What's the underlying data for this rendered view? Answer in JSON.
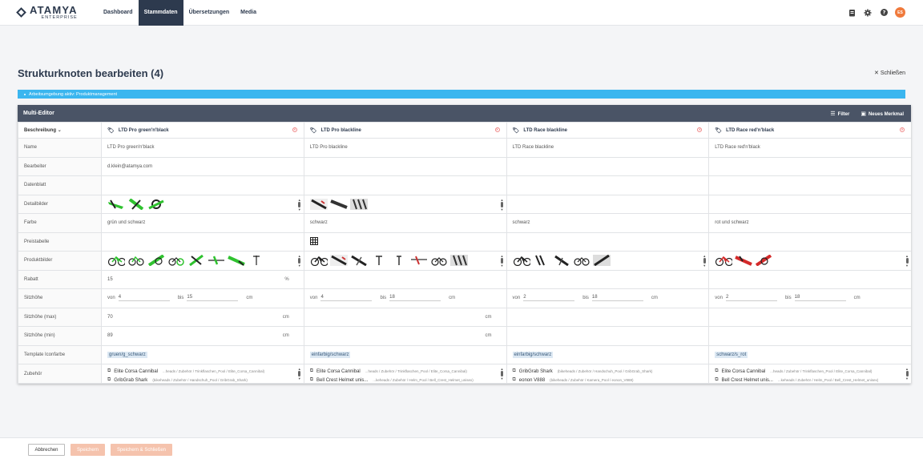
{
  "app": {
    "logo_name": "ATAMYA",
    "logo_sub": "ENTERPRISE",
    "nav": [
      "Dashboard",
      "Stammdaten",
      "Übersetzungen",
      "Media"
    ],
    "avatar_initials": "ES"
  },
  "page": {
    "title": "Strukturknoten bearbeiten (4)",
    "close_label": "Schließen",
    "info": "Arbeitsumgebung aktiv: Produktmanagement"
  },
  "editor": {
    "title": "Multi-Editor",
    "filter_label": "Filter",
    "new_feature_label": "Neues Merkmal",
    "first_col_label": "Beschreibung",
    "columns": [
      "LTD Pro green'n'black",
      "LTD Pro blackline",
      "LTD Race blackline",
      "LTD Race red'n'black"
    ],
    "rows": {
      "name": {
        "label": "Name",
        "values": [
          "LTD Pro green'n'black",
          "LTD Pro blackline",
          "LTD Race blackline",
          "LTD Race red'n'black"
        ]
      },
      "bearbeiter": {
        "label": "Bearbeiter",
        "values": [
          "d.klein@atamya.com",
          "",
          "",
          ""
        ]
      },
      "datenblatt": {
        "label": "Datenblatt"
      },
      "detailbilder": {
        "label": "Detailbilder"
      },
      "farbe": {
        "label": "Farbe",
        "values": [
          "grün und schwarz",
          "schwarz",
          "schwarz",
          "rot und schwarz"
        ]
      },
      "preistabelle": {
        "label": "Preistabelle"
      },
      "produktbilder": {
        "label": "Produktbilder"
      },
      "rabatt": {
        "label": "Rabatt",
        "values": [
          "15",
          "",
          "",
          ""
        ],
        "unit": "%"
      },
      "sitzhoehe": {
        "label": "Sitzhöhe",
        "from_label": "von",
        "to_label": "bis",
        "unit": "cm",
        "values": [
          [
            "4",
            "15"
          ],
          [
            "4",
            "18"
          ],
          [
            "2",
            "18"
          ],
          [
            "2",
            "18"
          ]
        ]
      },
      "sitzhoehe_max": {
        "label": "Sitzhöhe (max)",
        "values": [
          "70",
          "",
          "",
          ""
        ],
        "unit": "cm"
      },
      "sitzhoehe_min": {
        "label": "Sitzhöhe (min)",
        "values": [
          "89",
          "",
          "",
          ""
        ],
        "unit": "cm"
      },
      "template_iconfarbe": {
        "label": "Template Iconfarbe",
        "values": [
          "gruen/g_schwarz",
          "einfarbig/schwarz",
          "einfarbig/schwarz",
          "schwarz/s_rot"
        ]
      },
      "zubehoer": {
        "label": "Zubehör",
        "items": [
          [
            [
              "Elite Corsa Cannibal",
              "...heads / Zubehör / Trinkflaschen_Pool / Elite_Corsa_Cannibal)"
            ],
            [
              "GribGrab Shark",
              "(bikeheads / Zubehör / Handschuh_Pool / GribGrab_Shark)"
            ]
          ],
          [
            [
              "Elite Corsa Cannibal",
              "...heads / Zubehör / Trinkflaschen_Pool / Elite_Corsa_Cannibal)"
            ],
            [
              "Bell Crest Helmet unis...",
              "...keheads / Zubehör / Helm_Pool / Bell_Crest_Helmet_unisex)"
            ]
          ],
          [
            [
              "GribGrab Shark",
              "(bikeheads / Zubehör / Handschuh_Pool / GribGrab_Shark)"
            ],
            [
              "eonon V888",
              "(bikeheads / Zubehör / Kamera_Pool / eonon_V888)"
            ]
          ],
          [
            [
              "Elite Corsa Cannibal",
              "...heads / Zubehör / Trinkflaschen_Pool / Elite_Corsa_Cannibal)"
            ],
            [
              "Bell Crest Helmet unis...",
              "...keheads / Zubehör / Helm_Pool / Bell_Crest_Helmet_unisex)"
            ]
          ]
        ]
      }
    }
  },
  "footer": {
    "cancel_label": "Abbrechen",
    "save_label": "Speichern",
    "save_close_label": "Speichern & Schließen"
  },
  "colors": {
    "nav_active": "#2d3a4e",
    "info_bar": "#3bb6ef",
    "editor_header": "#4a5466",
    "primary_button": "#f5c3ad",
    "avatar": "#f07a3c",
    "green": "#2fc22f",
    "red": "#d42a2a"
  }
}
